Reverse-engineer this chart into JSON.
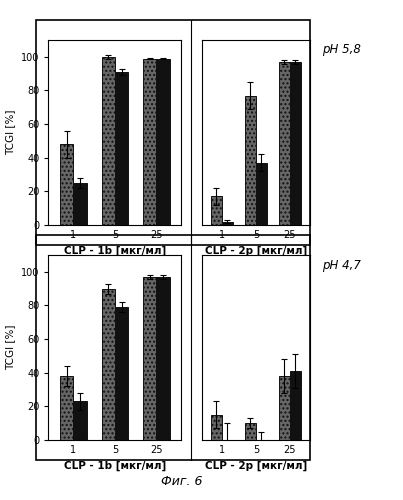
{
  "top_left": {
    "xlabel": "CLP - 1b [мкг/мл]",
    "ylabel": "TCGI [%]",
    "xticks": [
      "1",
      "5",
      "25"
    ],
    "bar1": [
      48,
      100,
      99
    ],
    "bar2": [
      25,
      91,
      99
    ],
    "err1": [
      8,
      1,
      0.5
    ],
    "err2": [
      3,
      2,
      0.5
    ]
  },
  "top_right": {
    "xlabel": "CLP - 2p [мкг/мл]",
    "ylabel": "TCGI [%]",
    "xticks": [
      "1",
      "5",
      "25"
    ],
    "bar1": [
      17,
      77,
      97
    ],
    "bar2": [
      2,
      37,
      97
    ],
    "err1": [
      5,
      8,
      1
    ],
    "err2": [
      1,
      5,
      1
    ]
  },
  "bot_left": {
    "xlabel": "CLP - 1b [мкг/мл]",
    "ylabel": "TCGI [%]",
    "xticks": [
      "1",
      "5",
      "25"
    ],
    "bar1": [
      38,
      90,
      97
    ],
    "bar2": [
      23,
      79,
      97
    ],
    "err1": [
      6,
      3,
      1
    ],
    "err2": [
      5,
      3,
      1
    ]
  },
  "bot_right": {
    "xlabel": "CLP - 2p [мкг/мл]",
    "ylabel": "TCGI [%]",
    "xticks": [
      "1",
      "5",
      "25"
    ],
    "bar1": [
      15,
      10,
      38
    ],
    "bar2": [
      0,
      0,
      41
    ],
    "err1": [
      8,
      3,
      10
    ],
    "err2": [
      10,
      5,
      10
    ]
  },
  "ph_top": "pH 5,8",
  "ph_bot": "pH 4,7",
  "fig_label": "Фиг. 6",
  "ylim": [
    0,
    110
  ],
  "yticks": [
    0,
    20,
    40,
    60,
    80,
    100
  ]
}
